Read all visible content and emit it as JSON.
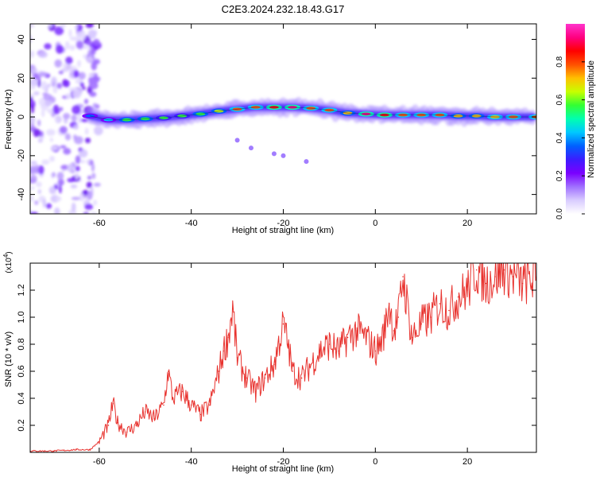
{
  "title": "C2E3.2024.232.18.43.G17",
  "chart_data": [
    {
      "type": "heatmap",
      "xlabel": "Height of straight line (km)",
      "ylabel": "Frequency (Hz)",
      "xlim": [
        -75,
        35
      ],
      "ylim": [
        -50,
        48
      ],
      "xticks": [
        -60,
        -40,
        -20,
        0,
        20
      ],
      "yticks": [
        -40,
        -20,
        0,
        20,
        40
      ],
      "colorbar": {
        "label": "Normalized spectral amplitude",
        "range": [
          0.0,
          1.0
        ],
        "ticks": [
          "0.0",
          "0.2",
          "0.4",
          "0.6",
          "0.8"
        ],
        "tick_values": [
          0.0,
          0.2,
          0.4,
          0.6,
          0.8
        ],
        "colormap": [
          "#ffffff",
          "#d9ccff",
          "#a070ff",
          "#7a00ff",
          "#3c1cff",
          "#0060ff",
          "#00c8ff",
          "#00ffb0",
          "#33ff33",
          "#c8ff00",
          "#ffc000",
          "#ff5000",
          "#ff0000",
          "#ff0080",
          "#ff33cc"
        ]
      },
      "ridge": {
        "x": [
          -62,
          -58,
          -54,
          -50,
          -46,
          -42,
          -38,
          -34,
          -30,
          -26,
          -22,
          -18,
          -14,
          -10,
          -6,
          -2,
          2,
          6,
          10,
          14,
          18,
          22,
          26,
          30,
          35
        ],
        "freq": [
          0.5,
          -1.5,
          -1.5,
          -1.0,
          -0.5,
          0.5,
          1.5,
          3.0,
          4.0,
          5.0,
          5.0,
          5.0,
          4.5,
          3.5,
          2.0,
          1.5,
          1.0,
          1.0,
          1.0,
          1.0,
          0.5,
          0.5,
          0.0,
          0.0,
          0.0
        ],
        "amplitude": [
          0.35,
          0.45,
          0.6,
          0.6,
          0.55,
          0.55,
          0.6,
          0.65,
          0.75,
          0.8,
          0.85,
          0.9,
          0.8,
          0.75,
          0.7,
          0.9,
          0.85,
          0.8,
          0.75,
          0.75,
          0.7,
          0.7,
          0.72,
          0.75,
          0.75
        ]
      },
      "faint_points": [
        {
          "x": -30,
          "freq": -12
        },
        {
          "x": -27,
          "freq": -16
        },
        {
          "x": -22,
          "freq": -19
        },
        {
          "x": -20,
          "freq": -20
        },
        {
          "x": -15,
          "freq": -23
        }
      ],
      "noise_region": {
        "x_from": -75,
        "x_to": -60
      }
    },
    {
      "type": "line",
      "xlabel": "Height of straight line (km)",
      "ylabel": "SNR (10 * v/v)",
      "y_multiplier": "(x10",
      "y_multiplier_exp": "4",
      "xlim": [
        -75,
        35
      ],
      "ylim": [
        0.0,
        1.4
      ],
      "xticks": [
        -60,
        -40,
        -20,
        0,
        20
      ],
      "yticks": [
        0.2,
        0.4,
        0.6,
        0.8,
        1.0,
        1.2
      ],
      "ytick_labels": [
        "0.2",
        "0.4",
        "0.6",
        "0.8",
        "1.0",
        "1.2"
      ],
      "line_color": "#e8322e",
      "series": [
        {
          "x": [
            -75,
            -70,
            -65,
            -62,
            -60,
            -58,
            -57,
            -56,
            -54,
            -52,
            -50,
            -48,
            -46,
            -45,
            -44,
            -42,
            -40,
            -38,
            -36,
            -34,
            -33,
            -32,
            -31,
            -30,
            -28,
            -26,
            -24,
            -22,
            -20,
            -19,
            -18,
            -16,
            -14,
            -12,
            -10,
            -8,
            -6,
            -4,
            -2,
            0,
            1,
            2,
            3,
            4,
            5,
            6,
            8,
            10,
            12,
            14,
            16,
            18,
            20,
            22,
            24,
            26,
            28,
            30,
            32,
            35
          ],
          "y": [
            0.01,
            0.01,
            0.02,
            0.02,
            0.08,
            0.2,
            0.36,
            0.22,
            0.15,
            0.2,
            0.3,
            0.25,
            0.35,
            0.6,
            0.4,
            0.45,
            0.35,
            0.28,
            0.35,
            0.6,
            0.75,
            0.85,
            1.06,
            0.7,
            0.55,
            0.45,
            0.55,
            0.65,
            0.95,
            0.8,
            0.6,
            0.55,
            0.65,
            0.75,
            0.8,
            0.75,
            0.85,
            0.9,
            0.85,
            0.75,
            0.8,
            0.9,
            1.1,
            0.9,
            1.0,
            1.3,
            0.85,
            0.95,
            1.0,
            1.1,
            1.05,
            1.15,
            1.2,
            1.35,
            1.25,
            1.3,
            1.35,
            1.3,
            1.25,
            1.3
          ]
        }
      ]
    }
  ]
}
